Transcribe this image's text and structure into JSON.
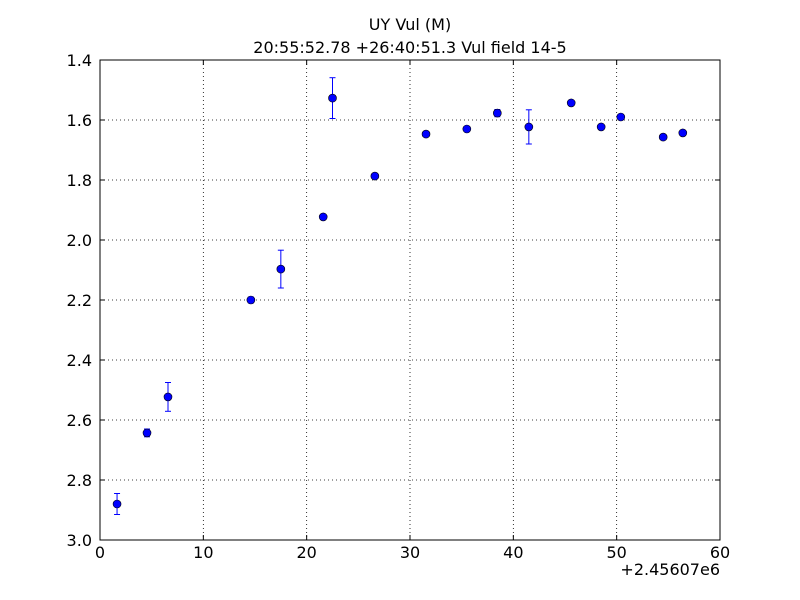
{
  "chart_data": {
    "type": "scatter",
    "title": "UY Vul (M)",
    "subtitle": "20:55:52.78 +26:40:51.3 Vul field 14-5",
    "annotation": "+2.45607e6",
    "x": [
      1.65,
      4.55,
      6.58,
      14.6,
      17.5,
      21.6,
      22.5,
      26.6,
      31.55,
      35.5,
      38.45,
      41.5,
      45.6,
      48.5,
      50.4,
      54.5,
      56.4
    ],
    "values": [
      2.88,
      2.643,
      2.523,
      2.2,
      2.097,
      1.923,
      1.527,
      1.787,
      1.647,
      1.63,
      1.577,
      1.623,
      1.543,
      1.623,
      1.59,
      1.657,
      1.643
    ],
    "errors": [
      0.035,
      0.013,
      0.048,
      0.01,
      0.063,
      0.005,
      0.068,
      0.005,
      0.005,
      0.005,
      0.012,
      0.057,
      0.005,
      0.005,
      0.005,
      0.005,
      0.005
    ],
    "color": "#0000ff",
    "xlim": [
      0,
      60
    ],
    "xticks": [
      0,
      10,
      20,
      30,
      40,
      50,
      60
    ],
    "ylim": [
      3.0,
      1.4
    ],
    "yticks": [
      1.4,
      1.6,
      1.8,
      {
        "value": 2,
        "label": "2.0"
      },
      2.2,
      2.4,
      2.6,
      2.8,
      {
        "value": 3,
        "label": "3.0"
      }
    ],
    "grid": true
  }
}
